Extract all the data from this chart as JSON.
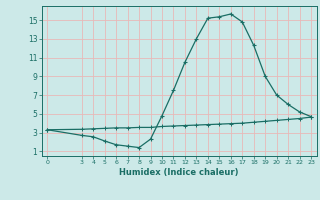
{
  "xlabel": "Humidex (Indice chaleur)",
  "background_color": "#cce9e8",
  "grid_color_major": "#e8b8b8",
  "grid_color_minor": "#e8b8b8",
  "line_color": "#1a6e65",
  "xlim": [
    -0.5,
    23.5
  ],
  "ylim": [
    0.5,
    16.5
  ],
  "yticks": [
    1,
    3,
    5,
    7,
    9,
    11,
    13,
    15
  ],
  "xticks": [
    0,
    3,
    4,
    5,
    6,
    7,
    8,
    9,
    10,
    11,
    12,
    13,
    14,
    15,
    16,
    17,
    18,
    19,
    20,
    21,
    22,
    23
  ],
  "curve1_x": [
    0,
    3,
    4,
    5,
    6,
    7,
    8,
    9,
    10,
    11,
    12,
    13,
    14,
    15,
    16,
    17,
    18,
    19,
    20,
    21,
    22,
    23
  ],
  "curve1_y": [
    3.3,
    2.7,
    2.55,
    2.1,
    1.7,
    1.55,
    1.4,
    2.3,
    4.8,
    7.5,
    10.5,
    13.0,
    15.2,
    15.35,
    15.65,
    14.8,
    12.3,
    9.0,
    7.0,
    6.0,
    5.2,
    4.7
  ],
  "curve2_x": [
    0,
    3,
    4,
    5,
    6,
    7,
    8,
    9,
    10,
    11,
    12,
    13,
    14,
    15,
    16,
    17,
    18,
    19,
    20,
    21,
    22,
    23
  ],
  "curve2_y": [
    3.3,
    3.35,
    3.4,
    3.45,
    3.5,
    3.5,
    3.55,
    3.55,
    3.65,
    3.7,
    3.75,
    3.8,
    3.85,
    3.9,
    3.95,
    4.0,
    4.1,
    4.2,
    4.3,
    4.4,
    4.5,
    4.65
  ]
}
